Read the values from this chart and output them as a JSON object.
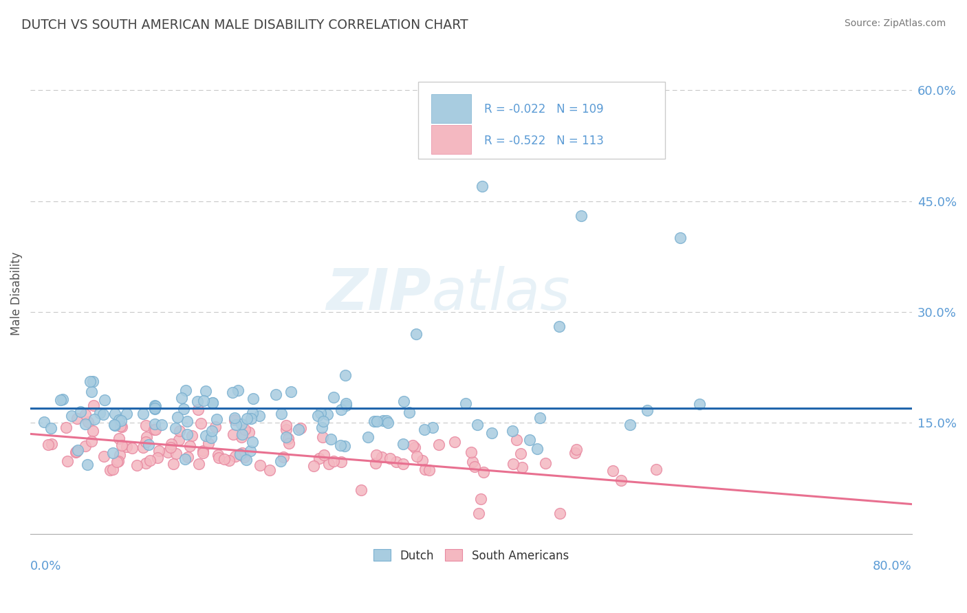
{
  "title": "DUTCH VS SOUTH AMERICAN MALE DISABILITY CORRELATION CHART",
  "source": "Source: ZipAtlas.com",
  "ylabel": "Male Disability",
  "xlim": [
    0.0,
    0.8
  ],
  "ylim": [
    0.0,
    0.65
  ],
  "dutch_R": -0.022,
  "dutch_N": 109,
  "sa_R": -0.522,
  "sa_N": 113,
  "dutch_color": "#a8cce0",
  "dutch_edge_color": "#7ab0d0",
  "sa_color": "#f4b8c1",
  "sa_edge_color": "#e888a0",
  "dutch_line_color": "#2166ac",
  "sa_line_color": "#e87090",
  "grid_color": "#c8c8c8",
  "title_color": "#444444",
  "tick_label_color": "#5b9bd5",
  "legend_text_color": "#5b9bd5",
  "legend_border_color": "#cccccc",
  "seed_dutch": 42,
  "seed_sa": 99
}
